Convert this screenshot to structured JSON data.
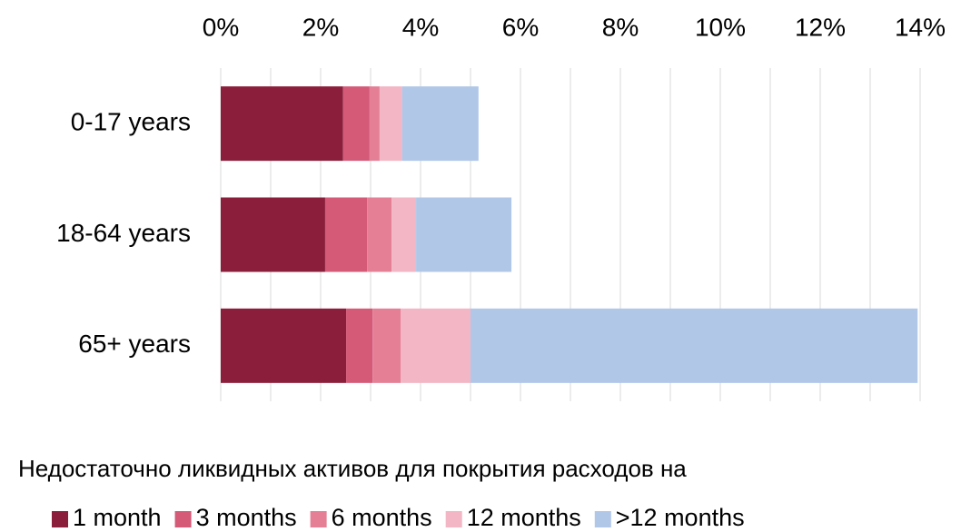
{
  "chart_data": {
    "type": "stacked-barh",
    "categories": [
      "0-17 years",
      "18-64 years",
      "65+ years"
    ],
    "series": [
      {
        "name": "1 month",
        "color": "#8b1e3a",
        "values": [
          2.45,
          2.09,
          2.51
        ]
      },
      {
        "name": "3 months",
        "color": "#d45a78",
        "values": [
          0.53,
          0.84,
          0.53
        ]
      },
      {
        "name": "6 months",
        "color": "#e57f95",
        "values": [
          0.2,
          0.49,
          0.56
        ]
      },
      {
        "name": "12 months",
        "color": "#f2b6c4",
        "values": [
          0.45,
          0.49,
          1.4
        ]
      },
      {
        "name": ">12 months",
        "color": "#b0c7e8",
        "values": [
          1.53,
          1.91,
          8.95
        ]
      }
    ],
    "xlabel": "Недостаточно ликвидных активов для покрытия расходов на",
    "xlim": [
      0,
      14
    ],
    "xticks": [
      {
        "value": 0,
        "label": "0%"
      },
      {
        "value": 2,
        "label": "2%"
      },
      {
        "value": 4,
        "label": "4%"
      },
      {
        "value": 6,
        "label": "6%"
      },
      {
        "value": 8,
        "label": "8%"
      },
      {
        "value": 10,
        "label": "10%"
      },
      {
        "value": 12,
        "label": "12%"
      },
      {
        "value": 14,
        "label": "14%"
      }
    ],
    "minor_xticks": [
      1,
      3,
      5,
      7,
      9,
      11,
      13
    ],
    "grid": true,
    "legend": "bottom"
  }
}
